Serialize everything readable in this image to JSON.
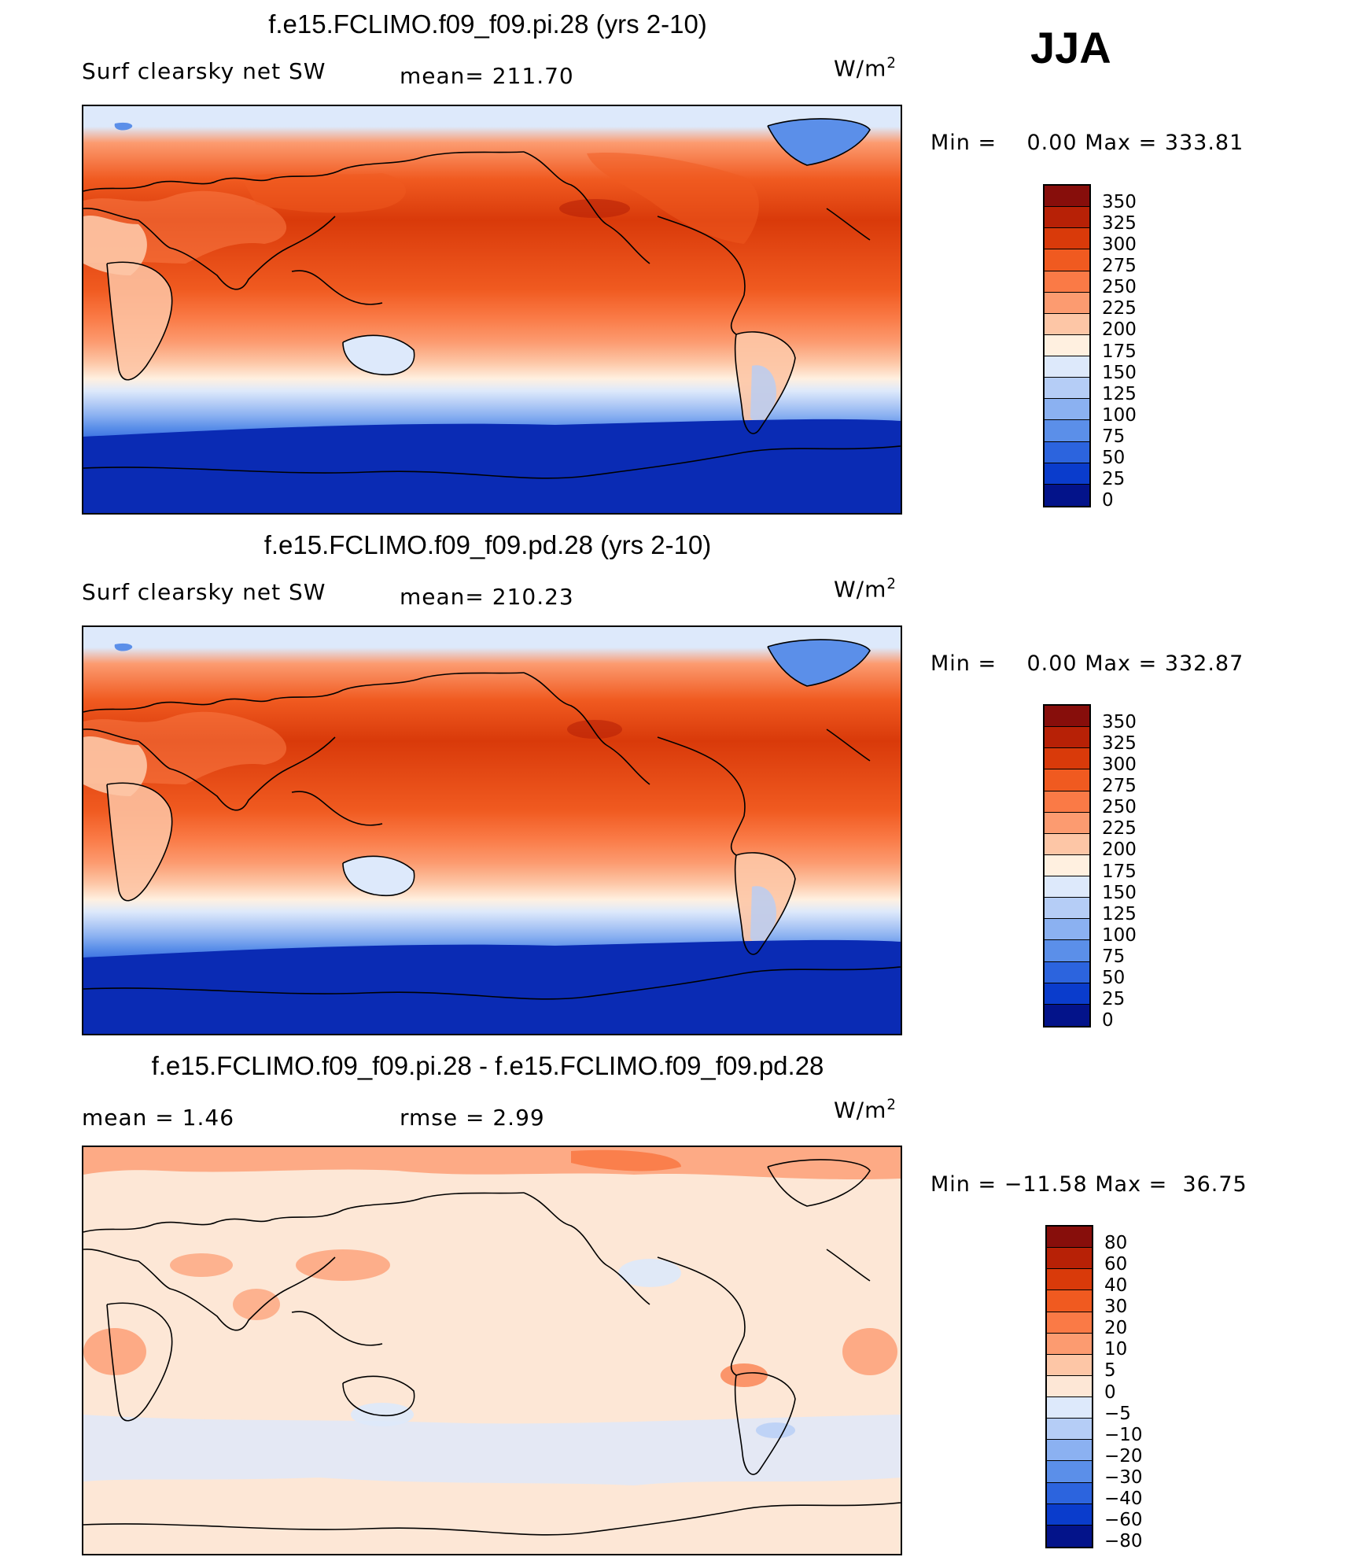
{
  "season": "JJA",
  "chart_data": [
    {
      "type": "heatmap",
      "title": "f.e15.FCLIMO.f09_f09.pi.28 (yrs 2-10)",
      "variable": "Surf clearsky net SW",
      "mean_text": "mean= 211.70",
      "units": "W/m",
      "units_sup": "2",
      "min_label": "Min =",
      "min_value": "0.00",
      "max_label": "Max =",
      "max_value": "333.81",
      "levels": [
        "350",
        "325",
        "300",
        "275",
        "250",
        "225",
        "200",
        "175",
        "150",
        "125",
        "100",
        "75",
        "50",
        "25",
        "0"
      ],
      "colors": [
        "#870e0b",
        "#b72106",
        "#d93a0a",
        "#f05a20",
        "#fa7a46",
        "#fc9b70",
        "#fdc6a6",
        "#fff0e0",
        "#dde9fb",
        "#b5cdf6",
        "#8bb1f1",
        "#5b8fe9",
        "#2c64de",
        "#0a3ccc",
        "#03138a"
      ]
    },
    {
      "type": "heatmap",
      "title": "f.e15.FCLIMO.f09_f09.pd.28 (yrs 2-10)",
      "variable": "Surf clearsky net SW",
      "mean_text": "mean= 210.23",
      "units": "W/m",
      "units_sup": "2",
      "min_label": "Min =",
      "min_value": "0.00",
      "max_label": "Max =",
      "max_value": "332.87",
      "levels": [
        "350",
        "325",
        "300",
        "275",
        "250",
        "225",
        "200",
        "175",
        "150",
        "125",
        "100",
        "75",
        "50",
        "25",
        "0"
      ],
      "colors": [
        "#870e0b",
        "#b72106",
        "#d93a0a",
        "#f05a20",
        "#fa7a46",
        "#fc9b70",
        "#fdc6a6",
        "#fff0e0",
        "#dde9fb",
        "#b5cdf6",
        "#8bb1f1",
        "#5b8fe9",
        "#2c64de",
        "#0a3ccc",
        "#03138a"
      ]
    },
    {
      "type": "heatmap",
      "title": "f.e15.FCLIMO.f09_f09.pi.28 - f.e15.FCLIMO.f09_f09.pd.28",
      "mean_text": "mean =    1.46",
      "rmse_text": "rmse =    2.99",
      "units": "W/m",
      "units_sup": "2",
      "min_label": "Min =",
      "min_value": "−11.58",
      "max_label": "Max =",
      "max_value": "36.75",
      "levels": [
        "80",
        "60",
        "40",
        "30",
        "20",
        "10",
        "5",
        "0",
        "−5",
        "−10",
        "−20",
        "−30",
        "−40",
        "−60",
        "−80"
      ],
      "colors": [
        "#870e0b",
        "#b72106",
        "#d93a0a",
        "#f05a20",
        "#fa7a46",
        "#fc9b70",
        "#fdc6a6",
        "#fde7d6",
        "#dde9fb",
        "#b5cdf6",
        "#8bb1f1",
        "#5b8fe9",
        "#2c64de",
        "#0a3ccc",
        "#03138a"
      ]
    }
  ]
}
